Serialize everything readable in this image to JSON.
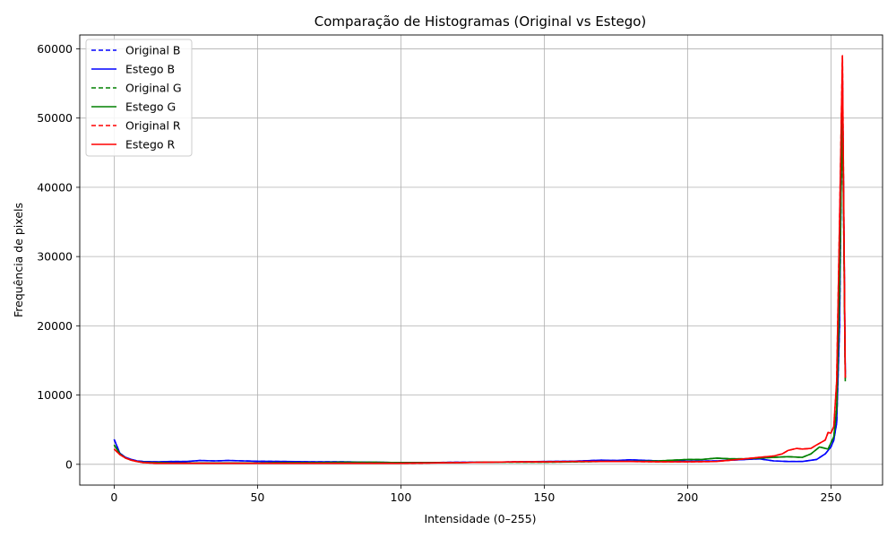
{
  "chart_data": {
    "type": "line",
    "title": "Comparação de Histogramas (Original vs Estego)",
    "xlabel": "Intensidade (0–255)",
    "ylabel": "Frequência de pixels",
    "xlim": [
      -12,
      268
    ],
    "ylim": [
      -3000,
      62000
    ],
    "xticks": [
      0,
      50,
      100,
      150,
      200,
      250
    ],
    "yticks": [
      0,
      10000,
      20000,
      30000,
      40000,
      50000,
      60000
    ],
    "grid": true,
    "legend": "top-left",
    "series": [
      {
        "name": "Original B",
        "color": "#0000ff",
        "dash": true,
        "x": [
          0,
          2,
          4,
          6,
          8,
          10,
          15,
          20,
          25,
          30,
          35,
          40,
          45,
          50,
          60,
          70,
          80,
          90,
          100,
          110,
          120,
          130,
          140,
          150,
          160,
          170,
          175,
          180,
          190,
          200,
          210,
          220,
          225,
          230,
          235,
          240,
          245,
          248,
          250,
          251,
          252,
          253,
          254,
          255
        ],
        "y": [
          3600,
          1600,
          1000,
          700,
          500,
          400,
          350,
          400,
          400,
          550,
          500,
          550,
          500,
          450,
          400,
          350,
          350,
          300,
          250,
          250,
          300,
          300,
          350,
          400,
          450,
          600,
          550,
          650,
          500,
          450,
          500,
          700,
          800,
          500,
          400,
          400,
          700,
          1500,
          2500,
          3500,
          6000,
          20000,
          56000,
          13000
        ]
      },
      {
        "name": "Estego B",
        "color": "#0000ff",
        "dash": false,
        "x": [
          0,
          2,
          4,
          6,
          8,
          10,
          15,
          20,
          25,
          30,
          35,
          40,
          45,
          50,
          60,
          70,
          80,
          90,
          100,
          110,
          120,
          130,
          140,
          150,
          160,
          170,
          175,
          180,
          190,
          200,
          210,
          220,
          225,
          230,
          235,
          240,
          245,
          248,
          250,
          251,
          252,
          253,
          254,
          255
        ],
        "y": [
          3600,
          1600,
          1000,
          700,
          500,
          400,
          350,
          400,
          400,
          550,
          500,
          550,
          500,
          450,
          400,
          350,
          350,
          300,
          250,
          250,
          300,
          300,
          350,
          400,
          450,
          600,
          550,
          650,
          500,
          450,
          500,
          700,
          800,
          500,
          400,
          400,
          700,
          1500,
          2500,
          3500,
          6000,
          20000,
          56000,
          13000
        ]
      },
      {
        "name": "Original G",
        "color": "#008000",
        "dash": true,
        "x": [
          0,
          2,
          4,
          6,
          8,
          10,
          15,
          20,
          30,
          40,
          50,
          60,
          70,
          80,
          90,
          100,
          110,
          120,
          130,
          140,
          150,
          160,
          170,
          180,
          190,
          195,
          200,
          205,
          210,
          215,
          220,
          225,
          230,
          235,
          240,
          243,
          246,
          249,
          251,
          252,
          253,
          254,
          255
        ],
        "y": [
          2800,
          1500,
          900,
          600,
          400,
          300,
          250,
          200,
          200,
          200,
          200,
          250,
          250,
          300,
          300,
          250,
          250,
          250,
          300,
          300,
          300,
          350,
          400,
          400,
          500,
          600,
          700,
          700,
          900,
          800,
          800,
          900,
          1000,
          1100,
          1000,
          1500,
          2500,
          2200,
          4000,
          8000,
          25000,
          52000,
          12000
        ]
      },
      {
        "name": "Estego G",
        "color": "#008000",
        "dash": false,
        "x": [
          0,
          2,
          4,
          6,
          8,
          10,
          15,
          20,
          30,
          40,
          50,
          60,
          70,
          80,
          90,
          100,
          110,
          120,
          130,
          140,
          150,
          160,
          170,
          180,
          190,
          195,
          200,
          205,
          210,
          215,
          220,
          225,
          230,
          235,
          240,
          243,
          246,
          249,
          251,
          252,
          253,
          254,
          255
        ],
        "y": [
          2800,
          1500,
          900,
          600,
          400,
          300,
          250,
          200,
          200,
          200,
          200,
          250,
          250,
          300,
          300,
          250,
          250,
          250,
          300,
          300,
          300,
          350,
          400,
          400,
          500,
          600,
          700,
          700,
          900,
          800,
          800,
          900,
          1000,
          1100,
          1000,
          1500,
          2500,
          2200,
          4000,
          8000,
          25000,
          52000,
          12000
        ]
      },
      {
        "name": "Original R",
        "color": "#ff0000",
        "dash": true,
        "x": [
          0,
          2,
          4,
          6,
          8,
          10,
          15,
          20,
          30,
          40,
          50,
          60,
          70,
          80,
          90,
          100,
          110,
          120,
          130,
          140,
          150,
          160,
          170,
          180,
          190,
          200,
          210,
          220,
          225,
          230,
          233,
          235,
          238,
          240,
          243,
          245,
          248,
          249,
          250,
          251,
          252,
          253,
          254,
          255
        ],
        "y": [
          2200,
          1400,
          900,
          600,
          400,
          250,
          150,
          150,
          150,
          150,
          150,
          150,
          150,
          150,
          150,
          150,
          200,
          250,
          300,
          350,
          350,
          400,
          400,
          400,
          350,
          350,
          400,
          800,
          1000,
          1200,
          1500,
          2000,
          2300,
          2200,
          2300,
          2800,
          3500,
          4600,
          4500,
          5500,
          12000,
          35000,
          59000,
          12500
        ]
      },
      {
        "name": "Estego R",
        "color": "#ff0000",
        "dash": false,
        "x": [
          0,
          2,
          4,
          6,
          8,
          10,
          15,
          20,
          30,
          40,
          50,
          60,
          70,
          80,
          90,
          100,
          110,
          120,
          130,
          140,
          150,
          160,
          170,
          180,
          190,
          200,
          210,
          220,
          225,
          230,
          233,
          235,
          238,
          240,
          243,
          245,
          248,
          249,
          250,
          251,
          252,
          253,
          254,
          255
        ],
        "y": [
          2200,
          1400,
          900,
          600,
          400,
          250,
          150,
          150,
          150,
          150,
          150,
          150,
          150,
          150,
          150,
          150,
          200,
          250,
          300,
          350,
          350,
          400,
          400,
          400,
          350,
          350,
          400,
          800,
          1000,
          1200,
          1500,
          2000,
          2300,
          2200,
          2300,
          2800,
          3500,
          4600,
          4500,
          5500,
          12000,
          35000,
          59000,
          12500
        ]
      }
    ]
  }
}
